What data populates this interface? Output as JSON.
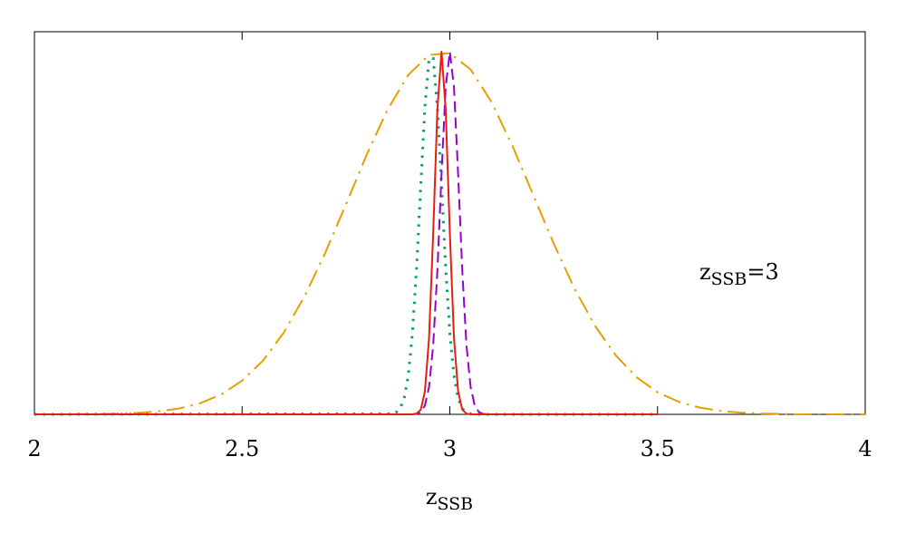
{
  "chart_data": {
    "type": "line",
    "xlabel": {
      "base": "z",
      "sub": "SSB"
    },
    "annotation": {
      "base": "z",
      "sub": "SSB",
      "suffix": "=3"
    },
    "xlim": [
      2,
      4
    ],
    "xticks": [
      2,
      2.5,
      3,
      3.5,
      4
    ],
    "ylim": [
      0,
      1.055
    ],
    "series": [
      {
        "color": "#e69f00",
        "linestyle": "dashdot",
        "x": [
          2,
          2.05,
          2.1,
          2.15,
          2.2,
          2.25,
          2.3,
          2.35,
          2.4,
          2.45,
          2.5,
          2.55,
          2.6,
          2.65,
          2.7,
          2.75,
          2.8,
          2.85,
          2.9,
          2.95,
          3,
          3.05,
          3.1,
          3.15,
          3.2,
          3.25,
          3.3,
          3.35,
          3.4,
          3.45,
          3.5,
          3.55,
          3.6,
          3.65,
          3.7,
          3.75,
          3.8,
          3.85,
          3.9,
          3.95,
          4
        ],
        "values": [
          0,
          0.0001,
          0.0003,
          0.0008,
          0.0019,
          0.0041,
          0.0084,
          0.0166,
          0.031,
          0.055,
          0.093,
          0.148,
          0.225,
          0.325,
          0.445,
          0.579,
          0.716,
          0.84,
          0.936,
          0.991,
          0.996,
          0.951,
          0.862,
          0.742,
          0.607,
          0.471,
          0.347,
          0.243,
          0.162,
          0.102,
          0.061,
          0.035,
          0.019,
          0.0097,
          0.0047,
          0.0022,
          0.001,
          0,
          0,
          0,
          0
        ]
      },
      {
        "color": "#009e73",
        "linestyle": "dotted",
        "x": [
          2,
          2.86,
          2.87,
          2.88,
          2.89,
          2.9,
          2.91,
          2.92,
          2.93,
          2.94,
          2.95,
          2.96,
          2.97,
          2.98,
          2.99,
          3,
          3.01,
          3.02,
          3.03,
          3.04,
          3.05,
          3.06,
          3.07,
          3.08,
          3.09,
          3.1,
          3.5
        ],
        "values": [
          0,
          0.0013,
          0.0048,
          0.0156,
          0.044,
          0.107,
          0.224,
          0.404,
          0.63,
          0.847,
          0.982,
          0.982,
          0.847,
          0.63,
          0.404,
          0.224,
          0.107,
          0.044,
          0.0156,
          0.0048,
          0.0013,
          0,
          0,
          0,
          0,
          0,
          0
        ]
      },
      {
        "color": "#9400d3",
        "linestyle": "dashed",
        "x": [
          2,
          2.86,
          2.87,
          2.88,
          2.89,
          2.9,
          2.91,
          2.92,
          2.93,
          2.94,
          2.95,
          2.96,
          2.97,
          2.98,
          2.99,
          3,
          3.01,
          3.02,
          3.03,
          3.04,
          3.05,
          3.06,
          3.07,
          3.08,
          3.09,
          3.1,
          3.5
        ],
        "values": [
          0,
          0,
          0,
          0,
          0,
          0,
          0,
          0.0013,
          0.0063,
          0.0243,
          0.0756,
          0.191,
          0.395,
          0.662,
          0.902,
          1,
          0.902,
          0.662,
          0.395,
          0.191,
          0.0756,
          0.0243,
          0.0063,
          0.0013,
          0,
          0,
          0
        ]
      },
      {
        "color": "#e51e10",
        "linestyle": "solid",
        "x": [
          2,
          2.86,
          2.87,
          2.88,
          2.89,
          2.9,
          2.91,
          2.92,
          2.93,
          2.94,
          2.95,
          2.96,
          2.97,
          2.98,
          2.99,
          3,
          3.01,
          3.02,
          3.03,
          3.04,
          3.05,
          3.06,
          3.07,
          3.08,
          3.09,
          3.1,
          3.5
        ],
        "values": [
          0,
          0,
          0,
          0,
          0,
          0,
          0,
          0.002,
          0.013,
          0.063,
          0.211,
          0.501,
          0.841,
          1,
          0.841,
          0.501,
          0.211,
          0.063,
          0.013,
          0.002,
          0,
          0,
          0,
          0,
          0,
          0,
          0
        ]
      }
    ]
  }
}
